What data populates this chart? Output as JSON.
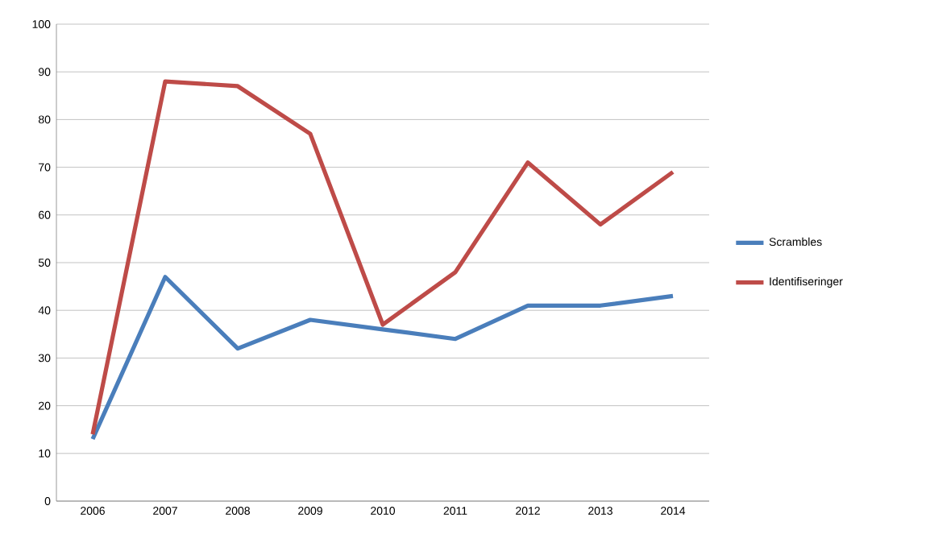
{
  "chart_data": {
    "type": "line",
    "categories": [
      "2006",
      "2007",
      "2008",
      "2009",
      "2010",
      "2011",
      "2012",
      "2013",
      "2014"
    ],
    "series": [
      {
        "name": "Scrambles",
        "color": "#4a7ebb",
        "values": [
          13,
          47,
          32,
          38,
          36,
          34,
          41,
          41,
          43
        ]
      },
      {
        "name": "Identifiseringer",
        "color": "#be4b48",
        "values": [
          14,
          88,
          87,
          77,
          37,
          48,
          71,
          58,
          69
        ]
      }
    ],
    "ylim": [
      0,
      100
    ],
    "yticks": [
      0,
      10,
      20,
      30,
      40,
      50,
      60,
      70,
      80,
      90,
      100
    ],
    "grid": "y",
    "legend": "right",
    "marker": "none",
    "line_style": "solid"
  }
}
